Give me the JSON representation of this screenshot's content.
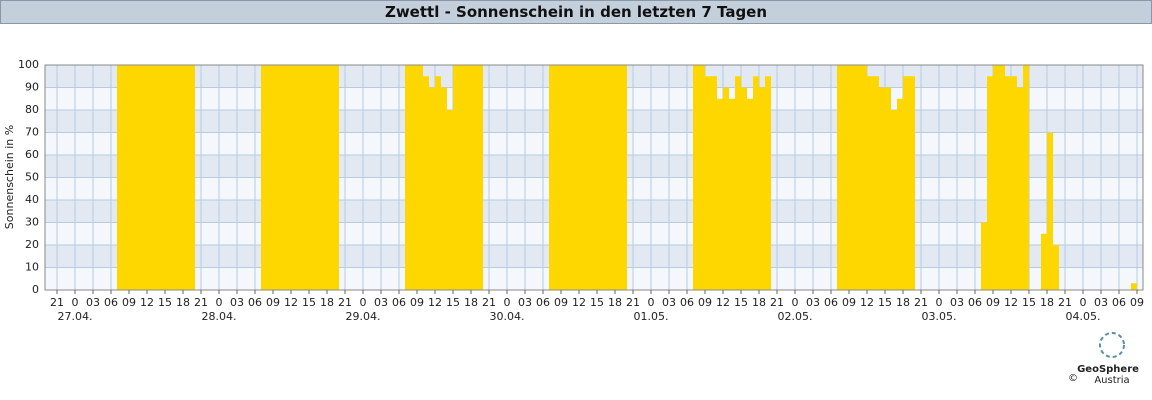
{
  "chart_data": {
    "type": "bar",
    "title": "Zwettl - Sonnenschein in den letzten 7 Tagen",
    "y_label": "Sonnenschein in %",
    "color": "#ffd700",
    "grid": true,
    "xlim": [
      -5,
      178
    ],
    "ylim": [
      0,
      100
    ],
    "yticks": [
      0,
      10,
      20,
      30,
      40,
      50,
      60,
      70,
      80,
      90,
      100
    ],
    "xticks": [
      {
        "value": -3,
        "label": "21"
      },
      {
        "value": 0,
        "label": "0"
      },
      {
        "value": 3,
        "label": "03"
      },
      {
        "value": 6,
        "label": "06"
      },
      {
        "value": 9,
        "label": "09"
      },
      {
        "value": 12,
        "label": "12"
      },
      {
        "value": 15,
        "label": "15"
      },
      {
        "value": 18,
        "label": "18"
      },
      {
        "value": 21,
        "label": "21"
      },
      {
        "value": 24,
        "label": "0"
      },
      {
        "value": 27,
        "label": "03"
      },
      {
        "value": 30,
        "label": "06"
      },
      {
        "value": 33,
        "label": "09"
      },
      {
        "value": 36,
        "label": "12"
      },
      {
        "value": 39,
        "label": "15"
      },
      {
        "value": 42,
        "label": "18"
      },
      {
        "value": 45,
        "label": "21"
      },
      {
        "value": 48,
        "label": "0"
      },
      {
        "value": 51,
        "label": "03"
      },
      {
        "value": 54,
        "label": "06"
      },
      {
        "value": 57,
        "label": "09"
      },
      {
        "value": 60,
        "label": "12"
      },
      {
        "value": 63,
        "label": "15"
      },
      {
        "value": 66,
        "label": "18"
      },
      {
        "value": 69,
        "label": "21"
      },
      {
        "value": 72,
        "label": "0"
      },
      {
        "value": 75,
        "label": "03"
      },
      {
        "value": 78,
        "label": "06"
      },
      {
        "value": 81,
        "label": "09"
      },
      {
        "value": 84,
        "label": "12"
      },
      {
        "value": 87,
        "label": "15"
      },
      {
        "value": 90,
        "label": "18"
      },
      {
        "value": 93,
        "label": "21"
      },
      {
        "value": 96,
        "label": "0"
      },
      {
        "value": 99,
        "label": "03"
      },
      {
        "value": 102,
        "label": "06"
      },
      {
        "value": 105,
        "label": "09"
      },
      {
        "value": 108,
        "label": "12"
      },
      {
        "value": 111,
        "label": "15"
      },
      {
        "value": 114,
        "label": "18"
      },
      {
        "value": 117,
        "label": "21"
      },
      {
        "value": 120,
        "label": "0"
      },
      {
        "value": 123,
        "label": "03"
      },
      {
        "value": 126,
        "label": "06"
      },
      {
        "value": 129,
        "label": "09"
      },
      {
        "value": 132,
        "label": "12"
      },
      {
        "value": 135,
        "label": "15"
      },
      {
        "value": 138,
        "label": "18"
      },
      {
        "value": 141,
        "label": "21"
      },
      {
        "value": 144,
        "label": "0"
      },
      {
        "value": 147,
        "label": "03"
      },
      {
        "value": 150,
        "label": "06"
      },
      {
        "value": 153,
        "label": "09"
      },
      {
        "value": 156,
        "label": "12"
      },
      {
        "value": 159,
        "label": "15"
      },
      {
        "value": 162,
        "label": "18"
      },
      {
        "value": 165,
        "label": "21"
      },
      {
        "value": 168,
        "label": "0"
      },
      {
        "value": 171,
        "label": "03"
      },
      {
        "value": 174,
        "label": "06"
      },
      {
        "value": 177,
        "label": "09"
      }
    ],
    "date_labels": [
      {
        "value": 0,
        "label": "27.04."
      },
      {
        "value": 24,
        "label": "28.04."
      },
      {
        "value": 48,
        "label": "29.04."
      },
      {
        "value": 72,
        "label": "30.04."
      },
      {
        "value": 96,
        "label": "01.05."
      },
      {
        "value": 120,
        "label": "02.05."
      },
      {
        "value": 144,
        "label": "03.05."
      },
      {
        "value": 168,
        "label": "04.05."
      }
    ],
    "x": [
      7,
      8,
      9,
      10,
      11,
      12,
      13,
      14,
      15,
      16,
      17,
      18,
      19,
      31,
      32,
      33,
      34,
      35,
      36,
      37,
      38,
      39,
      40,
      41,
      42,
      43,
      55,
      56,
      57,
      58,
      59,
      60,
      61,
      62,
      63,
      64,
      65,
      66,
      67,
      79,
      80,
      81,
      82,
      83,
      84,
      85,
      86,
      87,
      88,
      89,
      90,
      91,
      103,
      104,
      105,
      106,
      107,
      108,
      109,
      110,
      111,
      112,
      113,
      114,
      115,
      127,
      128,
      129,
      130,
      131,
      132,
      133,
      134,
      135,
      136,
      137,
      138,
      139,
      151,
      152,
      153,
      154,
      155,
      156,
      157,
      158,
      161,
      162,
      163,
      176
    ],
    "values": [
      100,
      100,
      100,
      100,
      100,
      100,
      100,
      100,
      100,
      100,
      100,
      100,
      100,
      100,
      100,
      100,
      100,
      100,
      100,
      100,
      100,
      100,
      100,
      100,
      100,
      100,
      100,
      100,
      100,
      95,
      90,
      95,
      90,
      80,
      100,
      100,
      100,
      100,
      100,
      100,
      100,
      100,
      100,
      100,
      100,
      100,
      100,
      100,
      100,
      100,
      100,
      100,
      100,
      100,
      95,
      95,
      85,
      90,
      85,
      95,
      90,
      85,
      95,
      90,
      95,
      100,
      100,
      100,
      100,
      100,
      95,
      95,
      90,
      90,
      80,
      85,
      95,
      95,
      30,
      95,
      100,
      100,
      95,
      95,
      90,
      100,
      25,
      70,
      20,
      3
    ]
  },
  "logo": {
    "name": "GeoSphere",
    "sub": "Austria",
    "copyright": "©"
  }
}
